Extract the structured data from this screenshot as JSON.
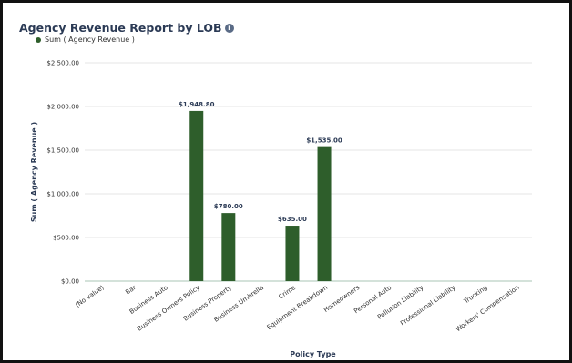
{
  "report": {
    "title": "Agency Revenue Report by LOB"
  },
  "icons": {
    "info": "info-icon",
    "info_glyph": "i"
  },
  "colors": {
    "bar": "#2e5e2b",
    "grid": "#e6e6e6",
    "axis_line": "#a9c4b4"
  },
  "chart_data": {
    "type": "bar",
    "title": "Agency Revenue Report by LOB",
    "xlabel": "Policy Type",
    "ylabel": "Sum ( Agency Revenue )",
    "legend_position": "top-left",
    "grid": true,
    "ylim": [
      0,
      2500
    ],
    "yticks": [
      0,
      500,
      1000,
      1500,
      2000,
      2500
    ],
    "ytick_labels": [
      "$0.00",
      "$500.00",
      "$1,000.00",
      "$1,500.00",
      "$2,000.00",
      "$2,500.00"
    ],
    "categories": [
      "(No value)",
      "Bar",
      "Business Auto",
      "Business Owners Policy",
      "Business Property",
      "Business Umbrella",
      "Crime",
      "Equipment Breakdown",
      "Homeowners",
      "Personal Auto",
      "Pollution Liability",
      "Professional Liability",
      "Trucking",
      "Workers' Compensation"
    ],
    "series": [
      {
        "name": "Sum ( Agency Revenue )",
        "values": [
          0,
          0,
          0,
          1948.8,
          780,
          0,
          635,
          1535,
          0,
          0,
          0,
          0,
          0,
          0
        ]
      }
    ],
    "data_labels": [
      "",
      "",
      "",
      "$1,948.80",
      "$780.00",
      "",
      "$635.00",
      "$1,535.00",
      "",
      "",
      "",
      "",
      "",
      ""
    ]
  }
}
